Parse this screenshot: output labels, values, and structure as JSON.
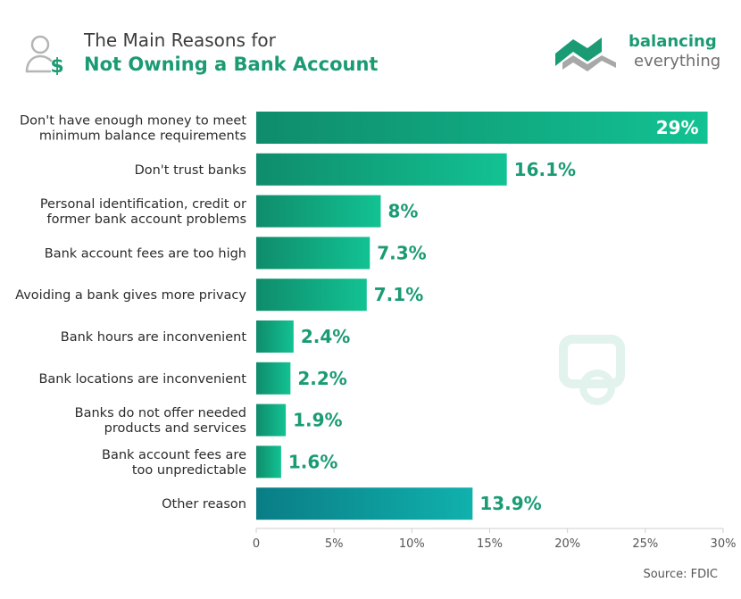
{
  "header": {
    "title_line1": "The Main Reasons for",
    "title_line2": "Not Owning a Bank Account",
    "title_icon": "person-dollar-icon"
  },
  "brand": {
    "name_line1": "balancing",
    "name_line2": "everything",
    "logo_icon": "balancing-everything-logo"
  },
  "source": "Source: FDIC",
  "colors": {
    "accent": "#1a9b73",
    "bar_start": "#0f8c6c",
    "bar_end": "#12c292",
    "other_start": "#0a7d86",
    "other_end": "#10b1ad",
    "label_text": "#2b2b2b",
    "value_text": "#1a9b73",
    "axis_text": "#555555"
  },
  "chart_data": {
    "type": "bar",
    "orientation": "horizontal",
    "title": "The Main Reasons for Not Owning a Bank Account",
    "categories": [
      [
        "Don't have enough money to meet",
        "minimum balance requirements"
      ],
      [
        "Don't trust banks"
      ],
      [
        "Personal identification, credit or",
        "former bank account problems"
      ],
      [
        "Bank account fees are too high"
      ],
      [
        "Avoiding a bank gives more privacy"
      ],
      [
        "Bank hours are inconvenient"
      ],
      [
        "Bank locations are inconvenient"
      ],
      [
        "Banks do not offer needed",
        "products and services"
      ],
      [
        "Bank account fees are",
        "too unpredictable"
      ],
      [
        "Other reason"
      ]
    ],
    "values": [
      29,
      16.1,
      8,
      7.3,
      7.1,
      2.4,
      2.2,
      1.9,
      1.6,
      13.9
    ],
    "value_labels": [
      "29%",
      "16.1%",
      "8%",
      "7.3%",
      "7.1%",
      "2.4%",
      "2.2%",
      "1.9%",
      "1.6%",
      "13.9%"
    ],
    "xlim": [
      0,
      30
    ],
    "xticks": [
      0,
      5,
      10,
      15,
      20,
      25,
      30
    ],
    "xtick_labels": [
      "0",
      "5%",
      "10%",
      "15%",
      "20%",
      "25%",
      "30%"
    ],
    "grid": false,
    "xlabel": "",
    "ylabel": ""
  }
}
